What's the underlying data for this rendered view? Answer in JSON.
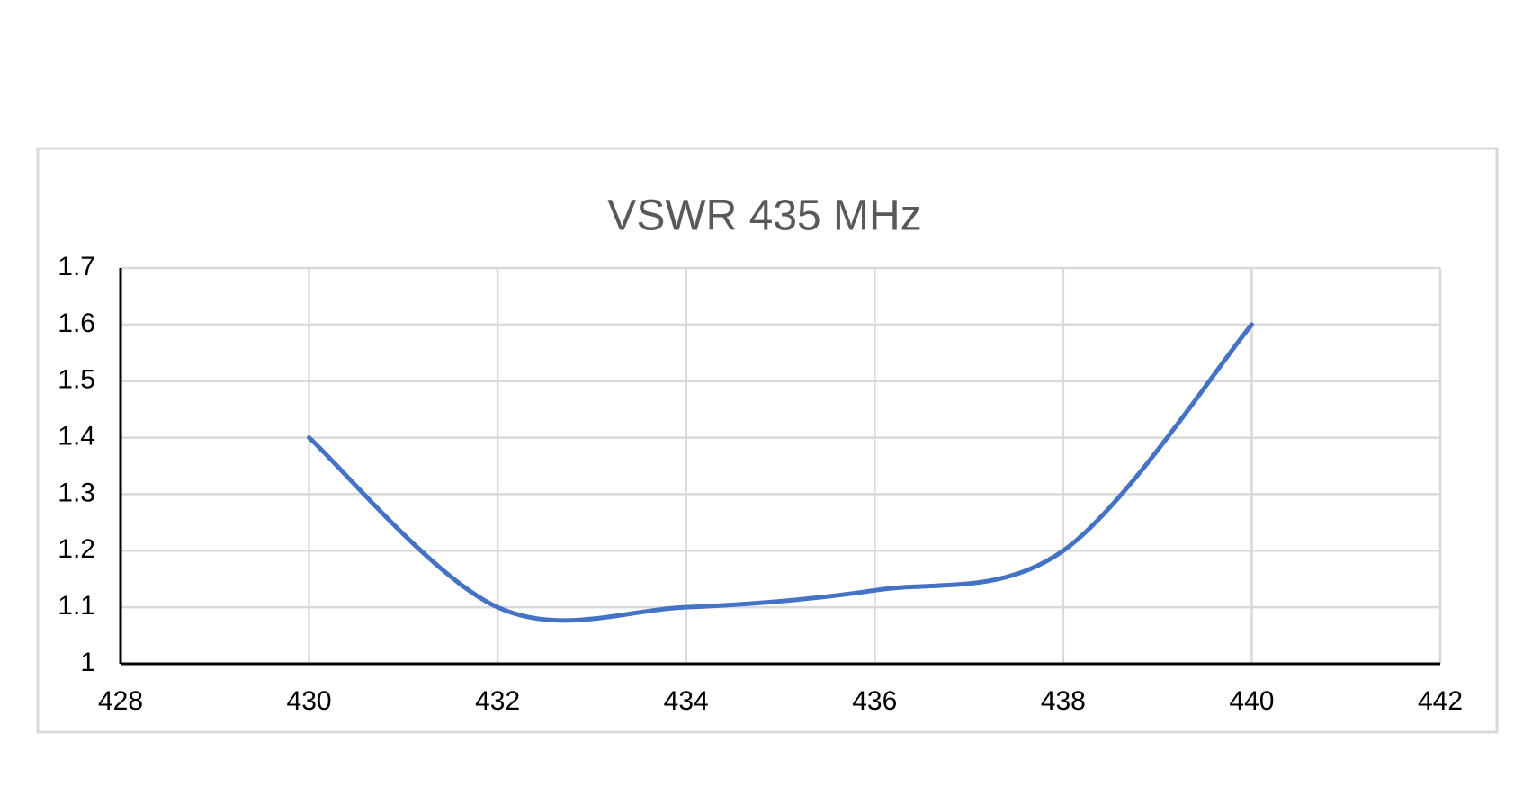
{
  "chart_data": {
    "type": "line",
    "title": "VSWR 435 MHz",
    "x": [
      430,
      432,
      434,
      436,
      438,
      440
    ],
    "series": [
      {
        "color": "#4472c4",
        "values": [
          1.4,
          1.1,
          1.1,
          1.13,
          1.2,
          1.6
        ]
      }
    ],
    "xlim": [
      428,
      442
    ],
    "xticks": [
      428,
      430,
      432,
      434,
      436,
      438,
      440,
      442
    ],
    "ylim": [
      1,
      1.7
    ],
    "yticks": [
      1,
      1.1,
      1.2,
      1.3,
      1.4,
      1.5,
      1.6,
      1.7
    ],
    "grid": true,
    "smooth": true
  }
}
